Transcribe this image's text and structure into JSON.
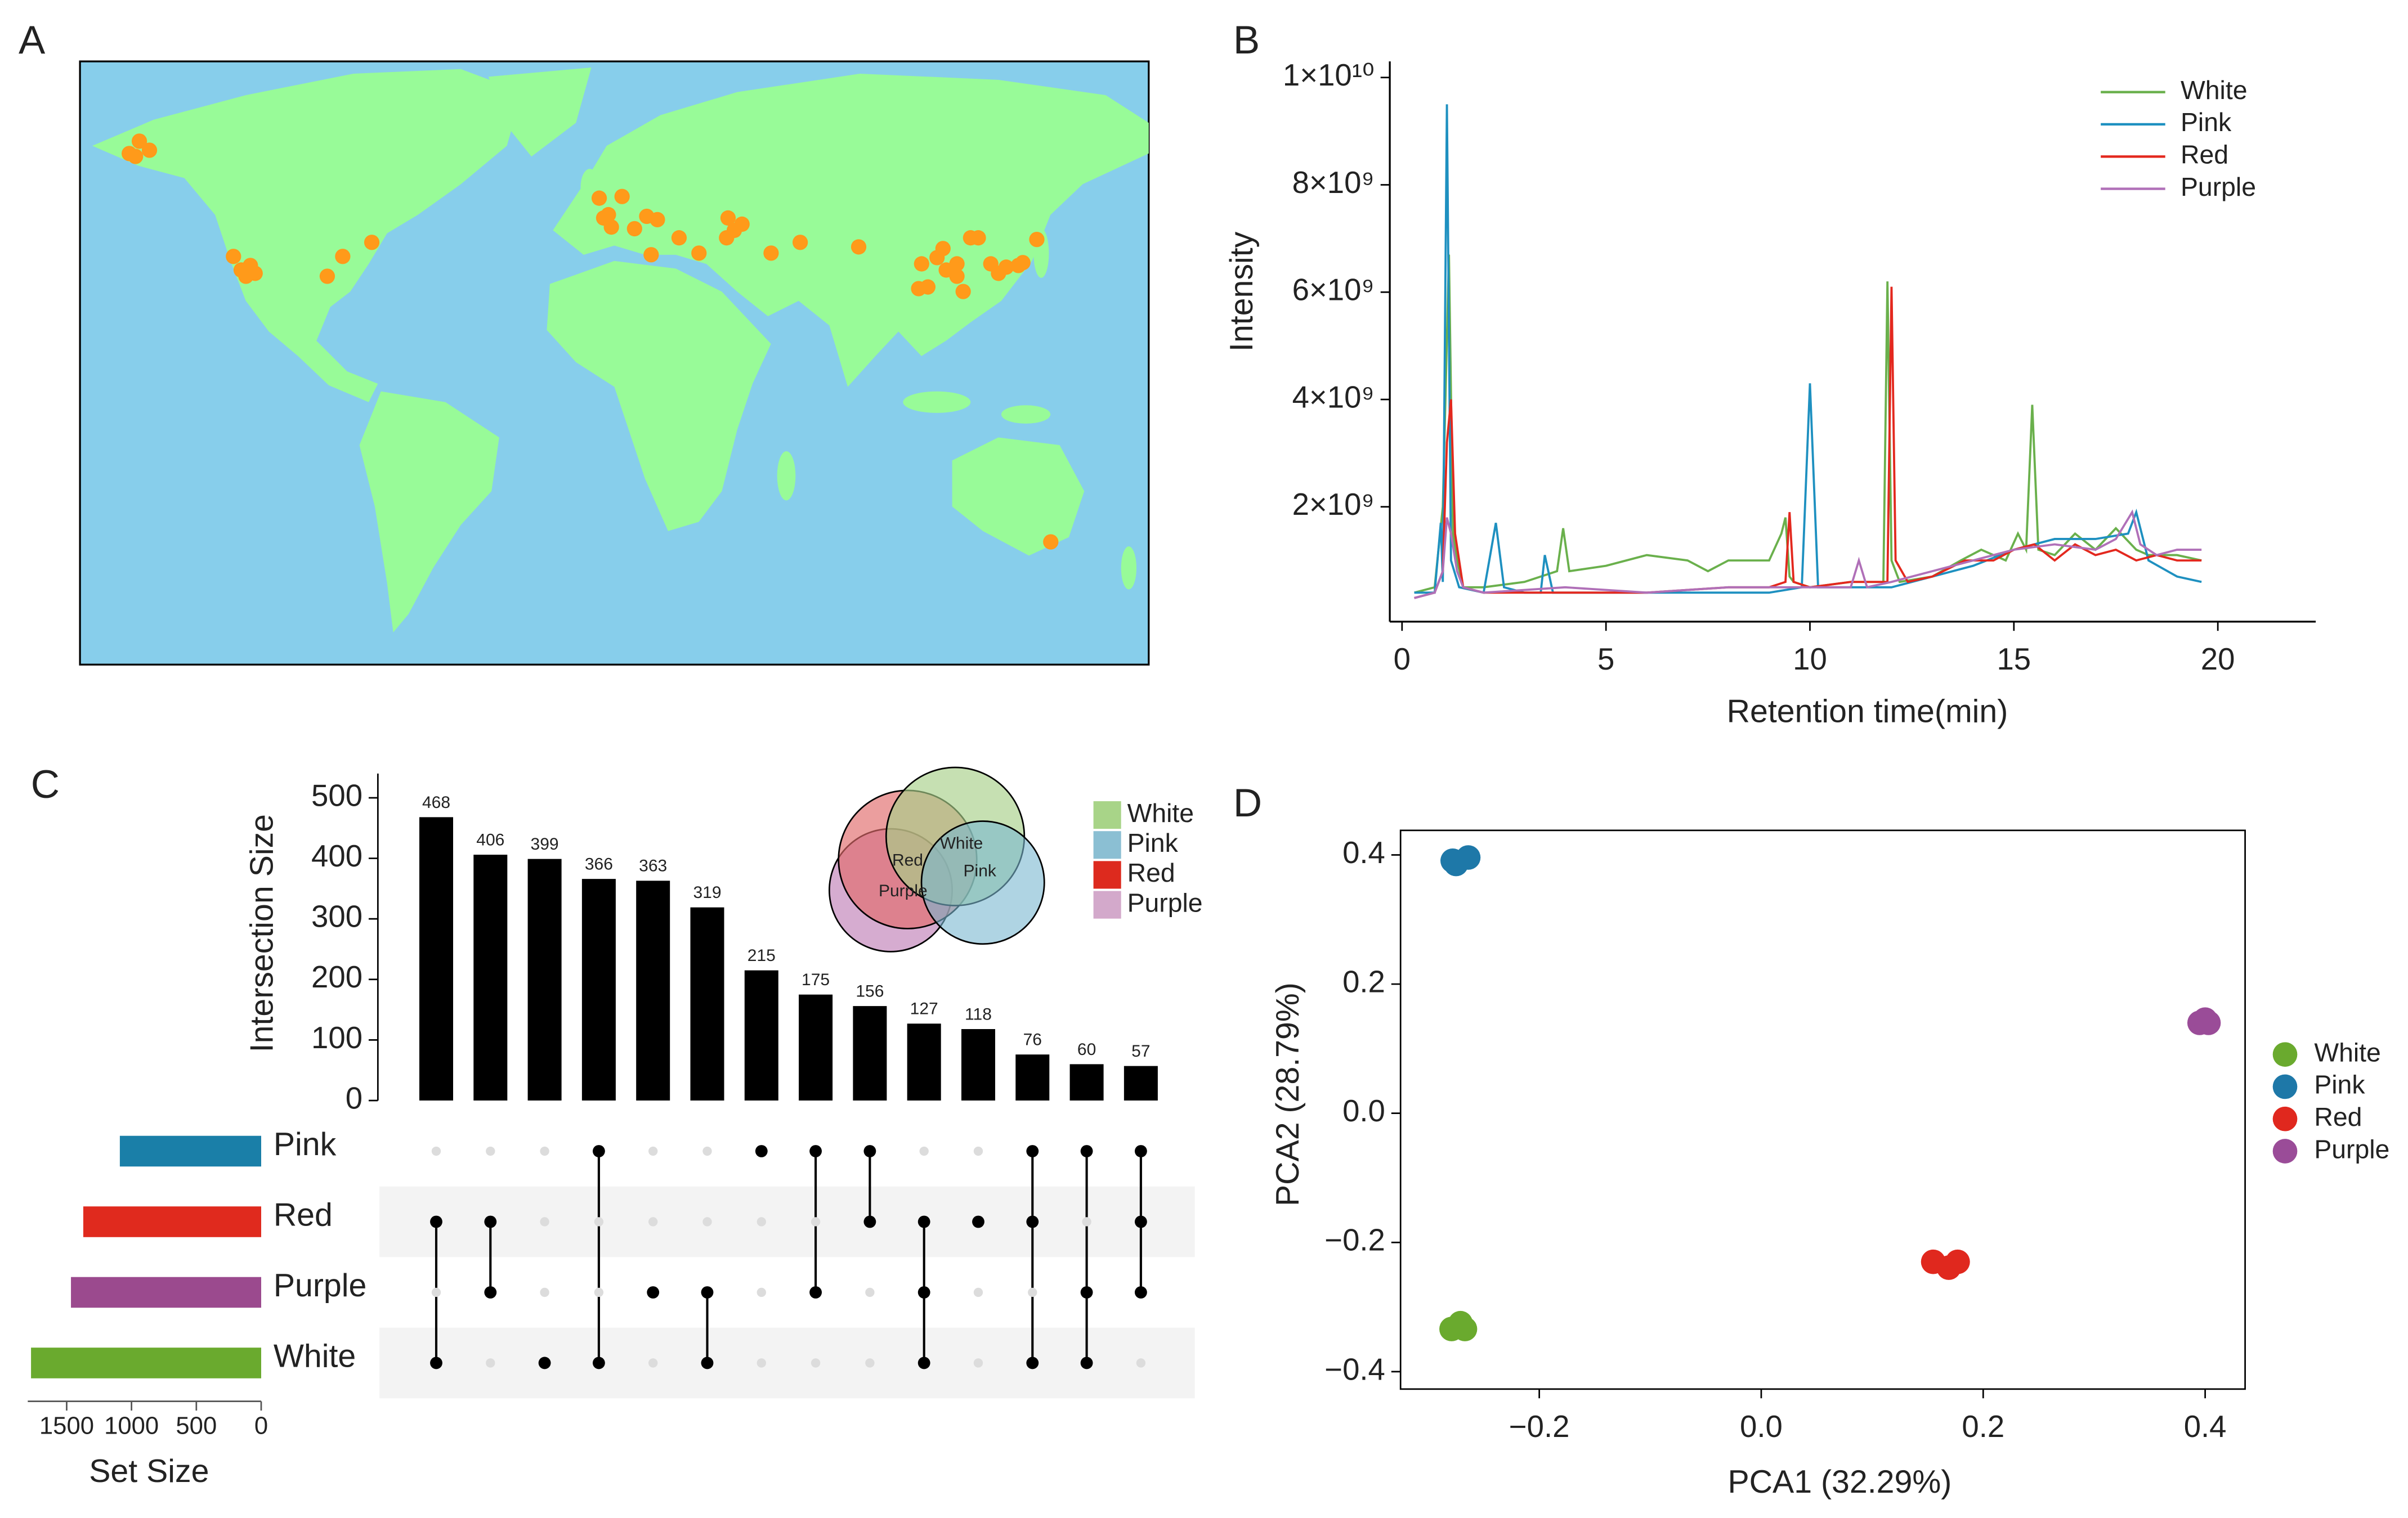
{
  "chart_data": [
    {
      "type": "map",
      "title": "A",
      "color": "#ff9a1a",
      "xlim": [
        -180,
        180
      ],
      "ylim": [
        -62,
        84
      ],
      "x": [
        -160,
        -163.4,
        -156.6,
        -161.3,
        -128.3,
        -125.7,
        -122.6,
        -121,
        -124.1,
        -96.7,
        -91.5,
        -81.7,
        -5.1,
        -3.6,
        -1,
        -2,
        2.6,
        6.8,
        10.9,
        14.5,
        12.4,
        21.8,
        28.5,
        38.3,
        40.4,
        43,
        37.8,
        52.8,
        62.6,
        82.3,
        103.5,
        105.6,
        108.7,
        110.7,
        111.8,
        115.4,
        117.5,
        120,
        122.6,
        126.8,
        129.4,
        132,
        136.1,
        137.6,
        142.3,
        102.5,
        115.4,
        147
      ],
      "values": [
        64.7,
        61.7,
        62.5,
        61,
        36.8,
        33.5,
        34.6,
        32.7,
        32,
        32,
        36.8,
        40.2,
        50.9,
        46.1,
        43.9,
        46.9,
        51.3,
        43.5,
        46.5,
        45.7,
        37.2,
        41.3,
        37.6,
        46.1,
        43.1,
        44.6,
        41.3,
        37.6,
        40.2,
        39.1,
        35,
        29.4,
        36.5,
        38.7,
        33.5,
        32,
        28.3,
        41.3,
        41.3,
        35,
        32.7,
        34.2,
        34.6,
        35.3,
        40.9,
        29,
        35,
        -32.3
      ]
    },
    {
      "type": "line",
      "title": "B",
      "xlabel": "Retention time(min)",
      "ylabel": "Intensity",
      "xlim": [
        -0.3,
        22.4
      ],
      "ylim": [
        -140000000.0,
        10300000000.0
      ],
      "xticks": [
        0,
        5,
        10,
        15,
        20
      ],
      "yticks": [
        {
          "value": 2000000000.0,
          "label": "2×10⁹"
        },
        {
          "value": 4000000000.0,
          "label": "4×10⁹"
        },
        {
          "value": 6000000000.0,
          "label": "6×10⁹"
        },
        {
          "value": 8000000000.0,
          "label": "8×10⁹"
        },
        {
          "value": 10000000000.0,
          "label": "1×10¹⁰"
        }
      ],
      "legend": "upper right",
      "series": [
        {
          "name": "White",
          "color": "#6ab04c",
          "x": [
            0.3,
            0.8,
            1.0,
            1.15,
            1.25,
            1.35,
            1.5,
            2,
            3,
            3.8,
            3.95,
            4.1,
            5,
            6,
            7,
            7.5,
            8,
            8.6,
            9,
            9.3,
            9.4,
            9.5,
            9.6,
            10,
            11,
            11.8,
            11.9,
            12.0,
            12.2,
            13,
            13.7,
            14.2,
            14.8,
            15.1,
            15.3,
            15.45,
            15.6,
            16,
            16.5,
            17,
            17.5,
            18,
            18.3,
            19,
            19.6
          ],
          "values": [
            400000000.0,
            500000000.0,
            2000000000.0,
            6700000000.0,
            1500000000.0,
            1000000000.0,
            500000000.0,
            500000000.0,
            600000000.0,
            800000000.0,
            1600000000.0,
            800000000.0,
            900000000.0,
            1100000000.0,
            1000000000.0,
            800000000.0,
            1000000000.0,
            1000000000.0,
            1000000000.0,
            1500000000.0,
            1800000000.0,
            700000000.0,
            600000000.0,
            500000000.0,
            600000000.0,
            600000000.0,
            6200000000.0,
            1000000000.0,
            600000000.0,
            700000000.0,
            1000000000.0,
            1200000000.0,
            1000000000.0,
            1500000000.0,
            1200000000.0,
            3900000000.0,
            1200000000.0,
            1100000000.0,
            1500000000.0,
            1200000000.0,
            1600000000.0,
            1200000000.0,
            1100000000.0,
            1100000000.0,
            1000000000.0
          ]
        },
        {
          "name": "Pink",
          "color": "#1e90c0",
          "x": [
            0.3,
            0.8,
            0.95,
            1.0,
            1.1,
            1.2,
            1.4,
            2.0,
            2.3,
            2.5,
            3.0,
            3.4,
            3.5,
            3.7,
            5,
            7,
            9,
            9.8,
            10.0,
            10.2,
            11,
            12,
            13,
            14,
            15,
            16,
            17,
            17.8,
            18,
            18.3,
            19,
            19.6
          ],
          "values": [
            400000000.0,
            400000000.0,
            1700000000.0,
            600000000.0,
            9500000000.0,
            1000000000.0,
            500000000.0,
            400000000.0,
            1700000000.0,
            500000000.0,
            400000000.0,
            400000000.0,
            1100000000.0,
            400000000.0,
            400000000.0,
            400000000.0,
            400000000.0,
            500000000.0,
            4300000000.0,
            500000000.0,
            500000000.0,
            500000000.0,
            700000000.0,
            900000000.0,
            1200000000.0,
            1400000000.0,
            1400000000.0,
            1500000000.0,
            1900000000.0,
            1000000000.0,
            700000000.0,
            600000000.0
          ]
        },
        {
          "name": "Red",
          "color": "#e3281e",
          "x": [
            0.3,
            0.8,
            1.0,
            1.1,
            1.2,
            1.3,
            1.5,
            2,
            4,
            6,
            8,
            9,
            9.4,
            9.5,
            9.6,
            10,
            11,
            11.9,
            12.0,
            12.1,
            12.4,
            13,
            13.8,
            14.5,
            15,
            15.5,
            16,
            16.5,
            17,
            17.5,
            18,
            18.5,
            19,
            19.6
          ],
          "values": [
            300000000.0,
            400000000.0,
            800000000.0,
            3200000000.0,
            4000000000.0,
            1500000000.0,
            500000000.0,
            400000000.0,
            400000000.0,
            400000000.0,
            500000000.0,
            500000000.0,
            600000000.0,
            1900000000.0,
            600000000.0,
            500000000.0,
            600000000.0,
            600000000.0,
            6100000000.0,
            1000000000.0,
            600000000.0,
            700000000.0,
            1000000000.0,
            1000000000.0,
            1200000000.0,
            1300000000.0,
            1000000000.0,
            1300000000.0,
            1100000000.0,
            1200000000.0,
            1000000000.0,
            1100000000.0,
            1000000000.0,
            1000000000.0
          ]
        },
        {
          "name": "Purple",
          "color": "#b070b8",
          "x": [
            0.3,
            0.8,
            1.0,
            1.1,
            1.2,
            1.35,
            1.5,
            2,
            4,
            6,
            8,
            10,
            11,
            11.2,
            11.4,
            12,
            13,
            14,
            15,
            16,
            17,
            17.5,
            17.9,
            18.1,
            18.5,
            19,
            19.6
          ],
          "values": [
            300000000.0,
            400000000.0,
            800000000.0,
            1800000000.0,
            1500000000.0,
            800000000.0,
            500000000.0,
            400000000.0,
            500000000.0,
            400000000.0,
            500000000.0,
            500000000.0,
            500000000.0,
            1000000000.0,
            500000000.0,
            600000000.0,
            800000000.0,
            1000000000.0,
            1200000000.0,
            1300000000.0,
            1200000000.0,
            1400000000.0,
            1900000000.0,
            1300000000.0,
            1100000000.0,
            1200000000.0,
            1200000000.0
          ]
        }
      ]
    },
    {
      "type": "upset",
      "title": "C",
      "ylabel": "Intersection Size",
      "xlabel": "Set Size",
      "ylim": [
        0,
        540
      ],
      "yticks": [
        0,
        100,
        200,
        300,
        400,
        500
      ],
      "color": "#000000",
      "values": [
        468,
        406,
        399,
        366,
        363,
        319,
        215,
        175,
        156,
        127,
        118,
        76,
        60,
        57
      ],
      "members": [
        [
          false,
          true,
          false,
          true
        ],
        [
          false,
          true,
          true,
          false
        ],
        [
          false,
          false,
          false,
          true
        ],
        [
          true,
          false,
          false,
          true
        ],
        [
          false,
          false,
          true,
          false
        ],
        [
          false,
          false,
          true,
          true
        ],
        [
          true,
          false,
          false,
          false
        ],
        [
          true,
          false,
          true,
          false
        ],
        [
          true,
          true,
          false,
          false
        ],
        [
          false,
          true,
          true,
          true
        ],
        [
          false,
          true,
          false,
          false
        ],
        [
          true,
          true,
          false,
          true
        ],
        [
          true,
          false,
          true,
          true
        ],
        [
          true,
          true,
          true,
          false
        ]
      ],
      "sets": [
        "Pink",
        "Red",
        "Purple",
        "White"
      ],
      "set_colors": [
        "#1a7fa8",
        "#e02a1e",
        "#9b4a8e",
        "#6aaa2e"
      ],
      "set_sizes": [
        1090,
        1372,
        1467,
        1775
      ],
      "xlim": [
        0,
        1800
      ],
      "xticks": [
        1500,
        1000,
        500,
        0
      ],
      "venn": {
        "labels": [
          "Red",
          "White",
          "Purple",
          "Pink"
        ],
        "legend": [
          {
            "name": "White",
            "color": "#a8d488"
          },
          {
            "name": "Pink",
            "color": "#8bbfd3"
          },
          {
            "name": "Red",
            "color": "#dd2a1e"
          },
          {
            "name": "Purple",
            "color": "#d3a9cb"
          }
        ]
      }
    },
    {
      "type": "scatter",
      "title": "D",
      "xlabel": "PCA1 (32.29%)",
      "ylabel": "PCA2 (28.79%)",
      "xlim": [
        -0.325,
        0.436
      ],
      "ylim": [
        -0.427,
        0.438
      ],
      "xticks": [
        {
          "value": -0.2,
          "label": "−0.2"
        },
        {
          "value": 0,
          "label": "0.0"
        },
        0.2,
        0.4
      ],
      "yticks": [
        0.4,
        0.2,
        {
          "value": 0,
          "label": "0.0"
        },
        {
          "value": -0.2,
          "label": "−0.2"
        },
        {
          "value": -0.4,
          "label": "−0.4"
        }
      ],
      "legend": "right",
      "series": [
        {
          "name": "White",
          "color": "#6aaa2e",
          "x": [
            -0.279,
            -0.271,
            -0.267
          ],
          "values": [
            -0.334,
            -0.325,
            -0.334
          ]
        },
        {
          "name": "Pink",
          "color": "#1e78a8",
          "x": [
            -0.275,
            -0.264,
            -0.278
          ],
          "values": [
            0.386,
            0.396,
            0.391
          ]
        },
        {
          "name": "Red",
          "color": "#e0281e",
          "x": [
            0.155,
            0.169,
            0.177
          ],
          "values": [
            -0.23,
            -0.239,
            -0.23
          ]
        },
        {
          "name": "Purple",
          "color": "#9a4c98",
          "x": [
            0.395,
            0.403,
            0.4
          ],
          "values": [
            0.14,
            0.14,
            0.145
          ]
        }
      ]
    }
  ]
}
